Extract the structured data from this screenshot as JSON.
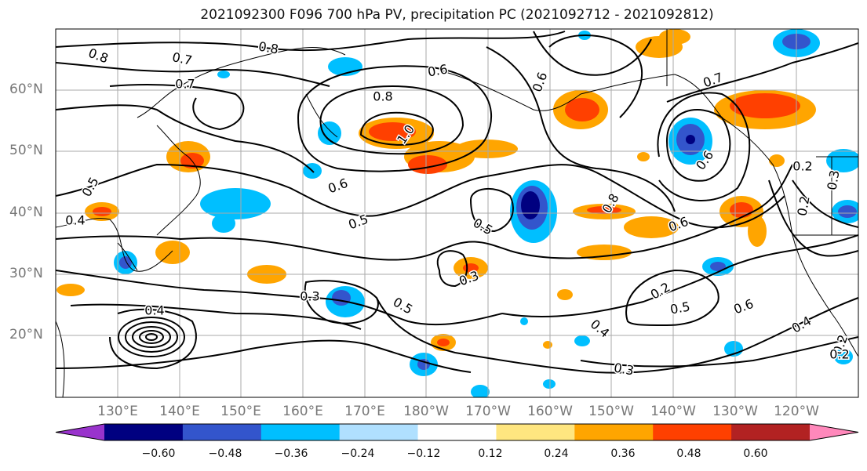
{
  "title": "2021092300 F096 700 hPa PV, precipitation PC (2021092712 - 2021092812)",
  "lat_labels": [
    "60°N",
    "50°N",
    "40°N",
    "30°N",
    "20°N"
  ],
  "lon_labels": [
    "130°E",
    "140°E",
    "150°E",
    "160°E",
    "170°E",
    "180°W",
    "170°W",
    "160°W",
    "150°W",
    "140°W",
    "130°W",
    "120°W"
  ],
  "colorbar": {
    "ticks": [
      "−0.60",
      "−0.48",
      "−0.36",
      "−0.24",
      "−0.12",
      "0.12",
      "0.24",
      "0.36",
      "0.48",
      "0.60"
    ],
    "colors": [
      "#9933cc",
      "#000080",
      "#3355cc",
      "#00bfff",
      "#b0e0ff",
      "#ffffff",
      "#ffe680",
      "#ffa500",
      "#ff4000",
      "#b22222",
      "#ff88bb"
    ]
  },
  "contour_labels": [
    "0.8",
    "0.8",
    "0.7",
    "0.7",
    "0.6",
    "0.8",
    "1.0",
    "0.6",
    "0.5",
    "0.6",
    "0.6",
    "0.8",
    "0.7",
    "0.6",
    "0.5",
    "0.3",
    "0.3",
    "0.5",
    "0.4",
    "0.3",
    "0.2",
    "0.5",
    "0.6",
    "0.4",
    "0.2",
    "0.3",
    "0.2",
    "0.4",
    "0.5",
    "0.4",
    "0.2",
    "0.2"
  ]
}
